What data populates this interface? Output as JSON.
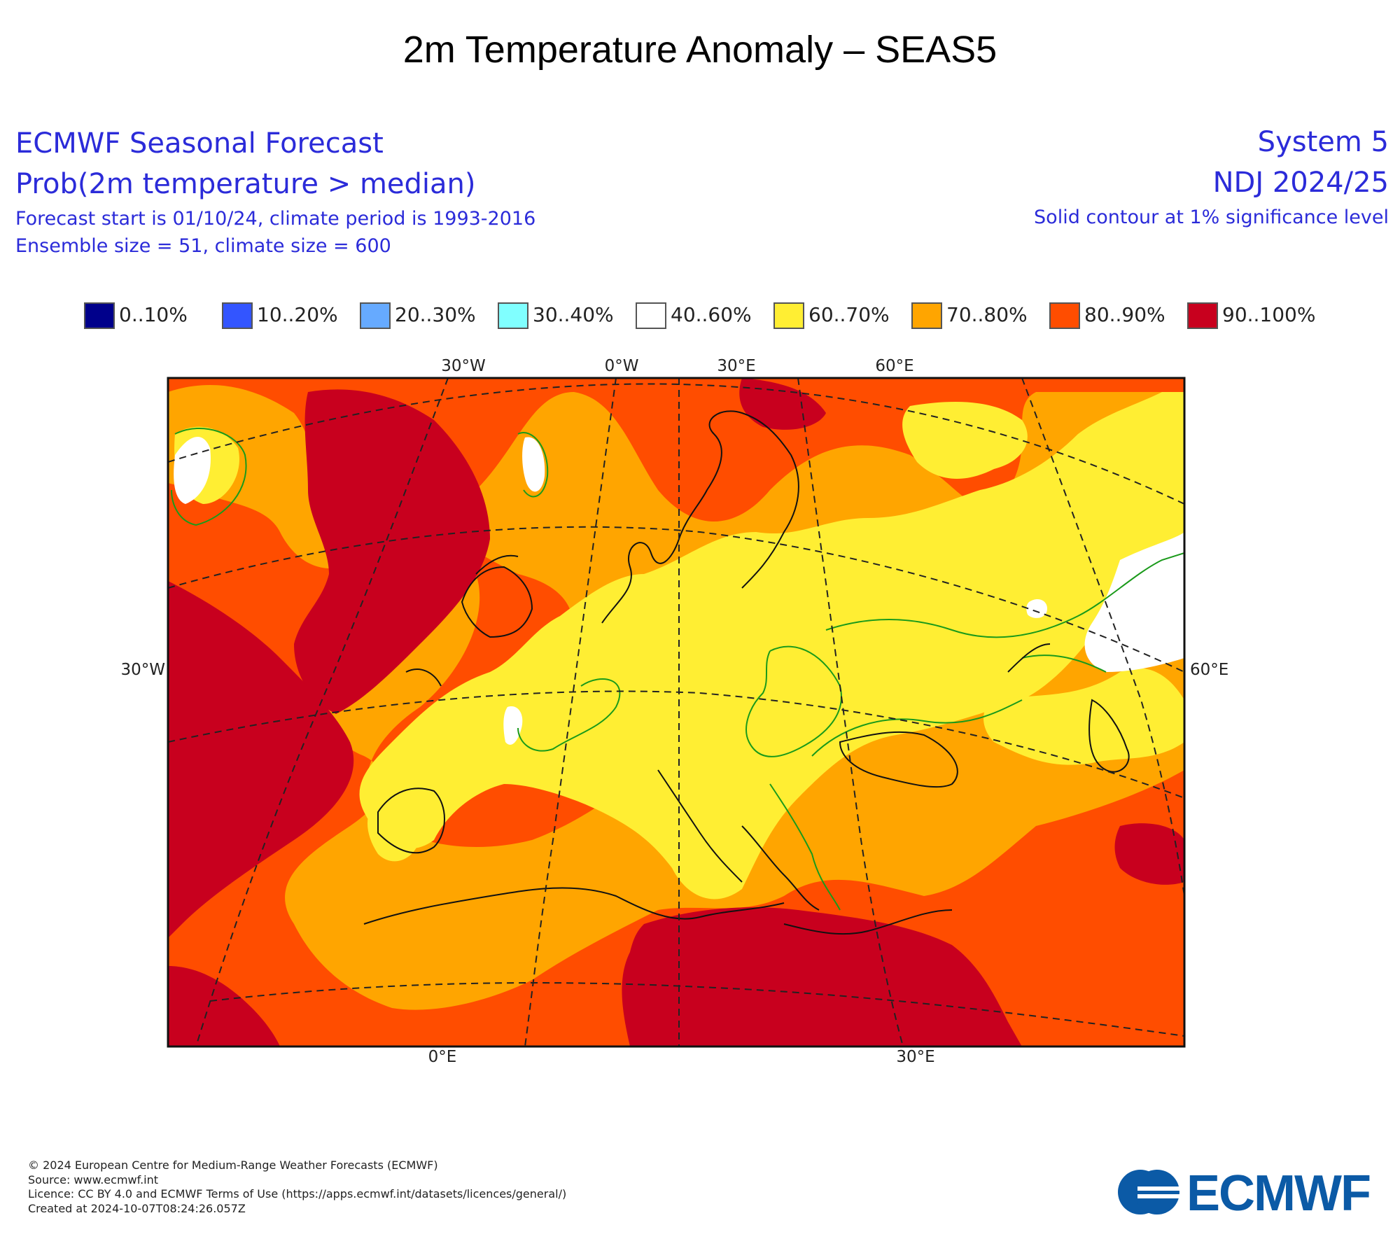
{
  "title": "2m Temperature Anomaly – SEAS5",
  "header": {
    "left": [
      "ECMWF Seasonal Forecast",
      "Prob(2m temperature > median)",
      "Forecast start is 01/10/24, climate period is 1993-2016",
      "Ensemble size = 51, climate size = 600"
    ],
    "right": [
      "System 5",
      "NDJ 2024/25",
      "Solid contour at 1% significance level"
    ]
  },
  "legend": [
    {
      "label": "0..10%",
      "color": "#00008b"
    },
    {
      "label": "10..20%",
      "color": "#3355ff"
    },
    {
      "label": "20..30%",
      "color": "#66aaff"
    },
    {
      "label": "30..40%",
      "color": "#80ffff"
    },
    {
      "label": "40..60%",
      "color": "#ffffff"
    },
    {
      "label": "60..70%",
      "color": "#ffee33"
    },
    {
      "label": "70..80%",
      "color": "#ffa500"
    },
    {
      "label": "80..90%",
      "color": "#ff4d00"
    },
    {
      "label": "90..100%",
      "color": "#c8001e"
    }
  ],
  "map": {
    "top_labels": [
      "30°W",
      "0°W",
      "30°E",
      "60°E"
    ],
    "left_label": "30°W",
    "right_label": "60°E",
    "bottom_labels": [
      "0°E",
      "30°E"
    ]
  },
  "footer": [
    "© 2024 European Centre for Medium-Range Weather Forecasts (ECMWF)",
    "Source: www.ecmwf.int",
    "Licence: CC BY 4.0 and ECMWF Terms of Use (https://apps.ecmwf.int/datasets/licences/general/)",
    "Created at 2024-10-07T08:24:26.057Z"
  ],
  "logo": {
    "text": "ECMWF",
    "color": "#0b5aa6"
  }
}
